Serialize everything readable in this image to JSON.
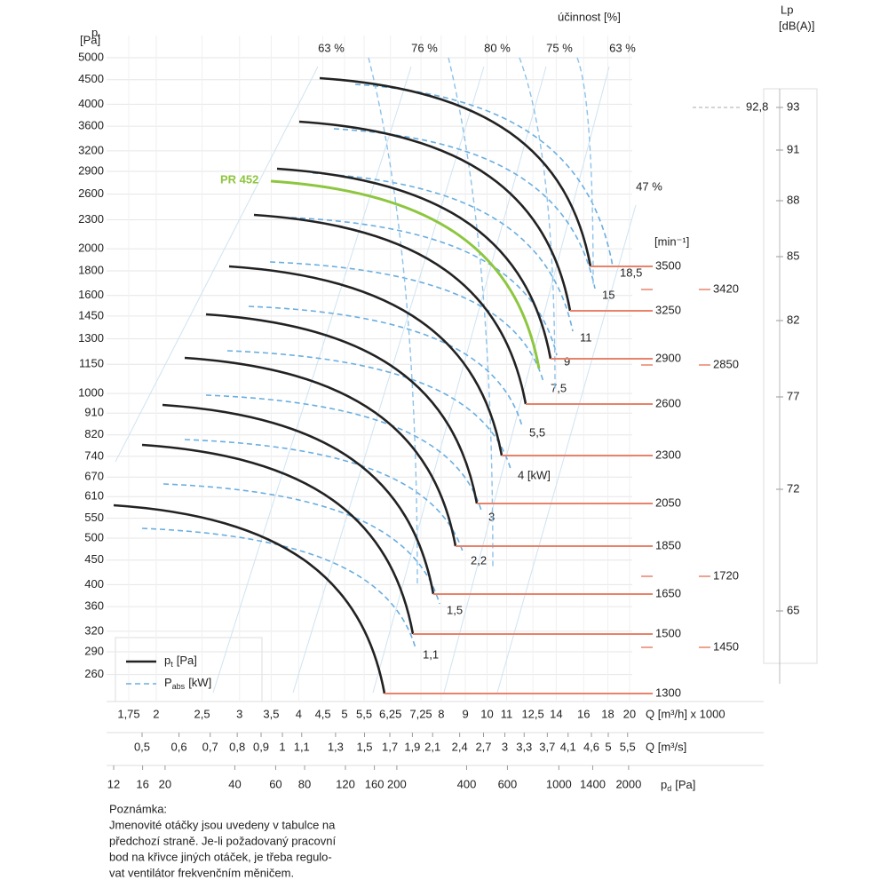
{
  "top_label": "účinnost [%]",
  "pressure_axis": {
    "symbol": "p",
    "subscript": "t",
    "unit": "[Pa]",
    "scale": "log",
    "ticks": [
      5000,
      4500,
      4000,
      3600,
      3200,
      2900,
      2600,
      2300,
      2000,
      1800,
      1600,
      1450,
      1300,
      1150,
      1000,
      910,
      820,
      740,
      670,
      610,
      550,
      500,
      450,
      400,
      360,
      320,
      290,
      260
    ]
  },
  "flow_m3h": {
    "unit": "Q [m³/h] x 1000",
    "scale": "log",
    "ticks": [
      {
        "value": 1.75,
        "label": "1,75"
      },
      2,
      {
        "value": 2.5,
        "label": "2,5"
      },
      3,
      {
        "value": 3.5,
        "label": "3,5"
      },
      4,
      {
        "value": 4.5,
        "label": "4,5"
      },
      5,
      {
        "value": 5.5,
        "label": "5,5"
      },
      {
        "value": 6.25,
        "label": "6,25"
      },
      {
        "value": 7.25,
        "label": "7,25"
      },
      8,
      9,
      10,
      11,
      {
        "value": 12.5,
        "label": "12,5"
      },
      14,
      16,
      18,
      20
    ]
  },
  "flow_m3s": {
    "unit": "Q [m³/s]",
    "scale": "log",
    "ticks": [
      {
        "value": 0.5,
        "label": "0,5"
      },
      {
        "value": 0.6,
        "label": "0,6"
      },
      {
        "value": 0.7,
        "label": "0,7"
      },
      {
        "value": 0.8,
        "label": "0,8"
      },
      {
        "value": 0.9,
        "label": "0,9"
      },
      1,
      {
        "value": 1.1,
        "label": "1,1"
      },
      {
        "value": 1.3,
        "label": "1,3"
      },
      {
        "value": 1.5,
        "label": "1,5"
      },
      {
        "value": 1.7,
        "label": "1,7"
      },
      {
        "value": 1.9,
        "label": "1,9"
      },
      {
        "value": 2.1,
        "label": "2,1"
      },
      {
        "value": 2.4,
        "label": "2,4"
      },
      {
        "value": 2.7,
        "label": "2,7"
      },
      3,
      {
        "value": 3.3,
        "label": "3,3"
      },
      {
        "value": 3.7,
        "label": "3,7"
      },
      {
        "value": 4.1,
        "label": "4,1"
      },
      {
        "value": 4.6,
        "label": "4,6"
      },
      5,
      {
        "value": 5.5,
        "label": "5,5"
      }
    ]
  },
  "dynamic_pressure": {
    "symbol": "p",
    "subscript": "d",
    "unit": "[Pa]",
    "scale": "log",
    "ticks": [
      12,
      16,
      20,
      40,
      60,
      80,
      120,
      160,
      200,
      400,
      600,
      1000,
      1400,
      2000
    ]
  },
  "speed_unit": "[min⁻¹]",
  "speeds": [
    3500,
    3250,
    2900,
    2600,
    2300,
    2050,
    1850,
    1650,
    1500,
    1300
  ],
  "speeds_secondary": [
    3420,
    2850,
    1720,
    1450
  ],
  "noise": {
    "symbol": "Lp",
    "unit": "[dB(A)]",
    "ticks": [
      93,
      91,
      88,
      85,
      82,
      77,
      72,
      65
    ],
    "marker": {
      "value": 92.8,
      "label": "92,8"
    }
  },
  "power_labels": [
    "18,5",
    "15",
    "11",
    "9",
    "7,5",
    "5,5",
    "4 [kW]",
    "3",
    "2,2",
    "1,5",
    "1,1"
  ],
  "efficiency_labels": [
    "63 %",
    "76 %",
    "80 %",
    "75 %",
    "63 %",
    "47 %"
  ],
  "highlight": "PR 452",
  "legend": [
    {
      "symbol": "p",
      "subscript": "t",
      "unit": "[Pa]"
    },
    {
      "symbol": "P",
      "subscript": "abs",
      "unit": "[kW]"
    }
  ],
  "note": {
    "heading": "Poznámka:",
    "lines": [
      "Jmenovité otáčky jsou uvedeny v tabulce na",
      "předchozí straně. Je-li požadovaný pracovní",
      "bod na křivce jiných otáček, je třeba regulo-",
      "vat ventilátor frekvenčním měničem."
    ]
  }
}
